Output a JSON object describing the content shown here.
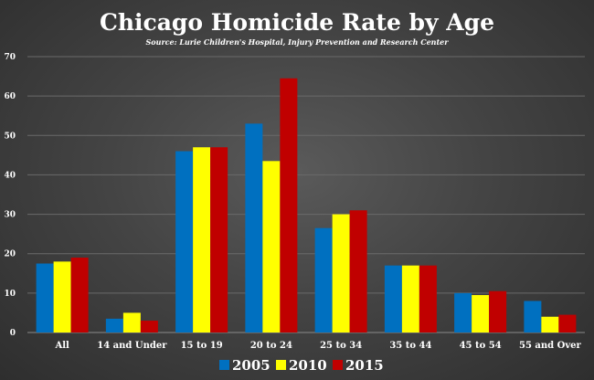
{
  "chart_data": {
    "type": "bar",
    "title": "Chicago Homicide Rate by Age",
    "subtitle": "Source: Lurie Children's Hospital, Injury Prevention and Research Center",
    "categories": [
      "All",
      "14 and Under",
      "15 to 19",
      "20 to 24",
      "25 to 34",
      "35 to 44",
      "45 to 54",
      "55 and Over"
    ],
    "series": [
      {
        "name": "2005",
        "color": "#0070C0",
        "values": [
          17.5,
          3.5,
          46,
          53,
          26.5,
          17,
          10,
          8
        ]
      },
      {
        "name": "2010",
        "color": "#FFFF00",
        "values": [
          18,
          5,
          47,
          43.5,
          30,
          17,
          9.5,
          4
        ]
      },
      {
        "name": "2015",
        "color": "#C00000",
        "values": [
          19,
          3,
          47,
          64.5,
          31,
          17,
          10.5,
          4.5
        ]
      }
    ],
    "yticks": [
      "0",
      "10",
      "20",
      "30",
      "40",
      "50",
      "60",
      "70"
    ],
    "ylim": [
      0,
      70
    ],
    "grid": true,
    "legend": "bottom"
  }
}
